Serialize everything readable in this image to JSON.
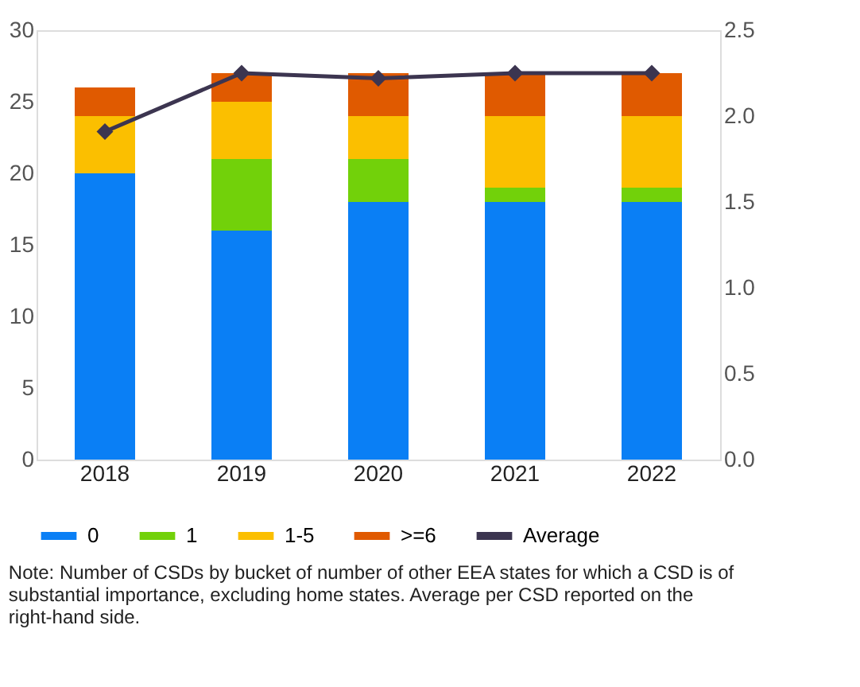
{
  "chart_data": {
    "type": "bar",
    "stacked": true,
    "categories": [
      "2018",
      "2019",
      "2020",
      "2021",
      "2022"
    ],
    "series": [
      {
        "name": "0",
        "color": "#0a7ff5",
        "values": [
          20,
          16,
          18,
          18,
          18
        ]
      },
      {
        "name": "1",
        "color": "#72d10a",
        "values": [
          0,
          5,
          3,
          1,
          1
        ]
      },
      {
        "name": "1-5",
        "color": "#fbbf00",
        "values": [
          4,
          4,
          3,
          5,
          5
        ]
      },
      {
        "name": ">=6",
        "color": "#e05a00",
        "values": [
          2,
          2,
          3,
          3,
          3
        ]
      },
      {
        "name": "Average",
        "type": "line",
        "axis": "y2",
        "color": "#3c3550",
        "marker": "diamond",
        "values": [
          1.91,
          2.25,
          2.22,
          2.25,
          2.25
        ]
      }
    ],
    "ylim": [
      0,
      30
    ],
    "yticks": [
      0,
      5,
      10,
      15,
      20,
      25,
      30
    ],
    "y2lim": [
      0,
      2.5
    ],
    "y2ticks": [
      {
        "value": 0,
        "label": "0.0"
      },
      {
        "value": 0.5,
        "label": "0.5"
      },
      {
        "value": 1,
        "label": "1.0"
      },
      {
        "value": 1.5,
        "label": "1.5"
      },
      {
        "value": 2,
        "label": "2.0"
      },
      {
        "value": 2.5,
        "label": "2.5"
      }
    ],
    "grid": false,
    "legend": "bottom",
    "annotations": [
      "Note: Number of CSDs by bucket of number of other EEA states for which a CSD is of substantial importance, excluding home states. Average per CSD reported on the right-hand side."
    ]
  }
}
